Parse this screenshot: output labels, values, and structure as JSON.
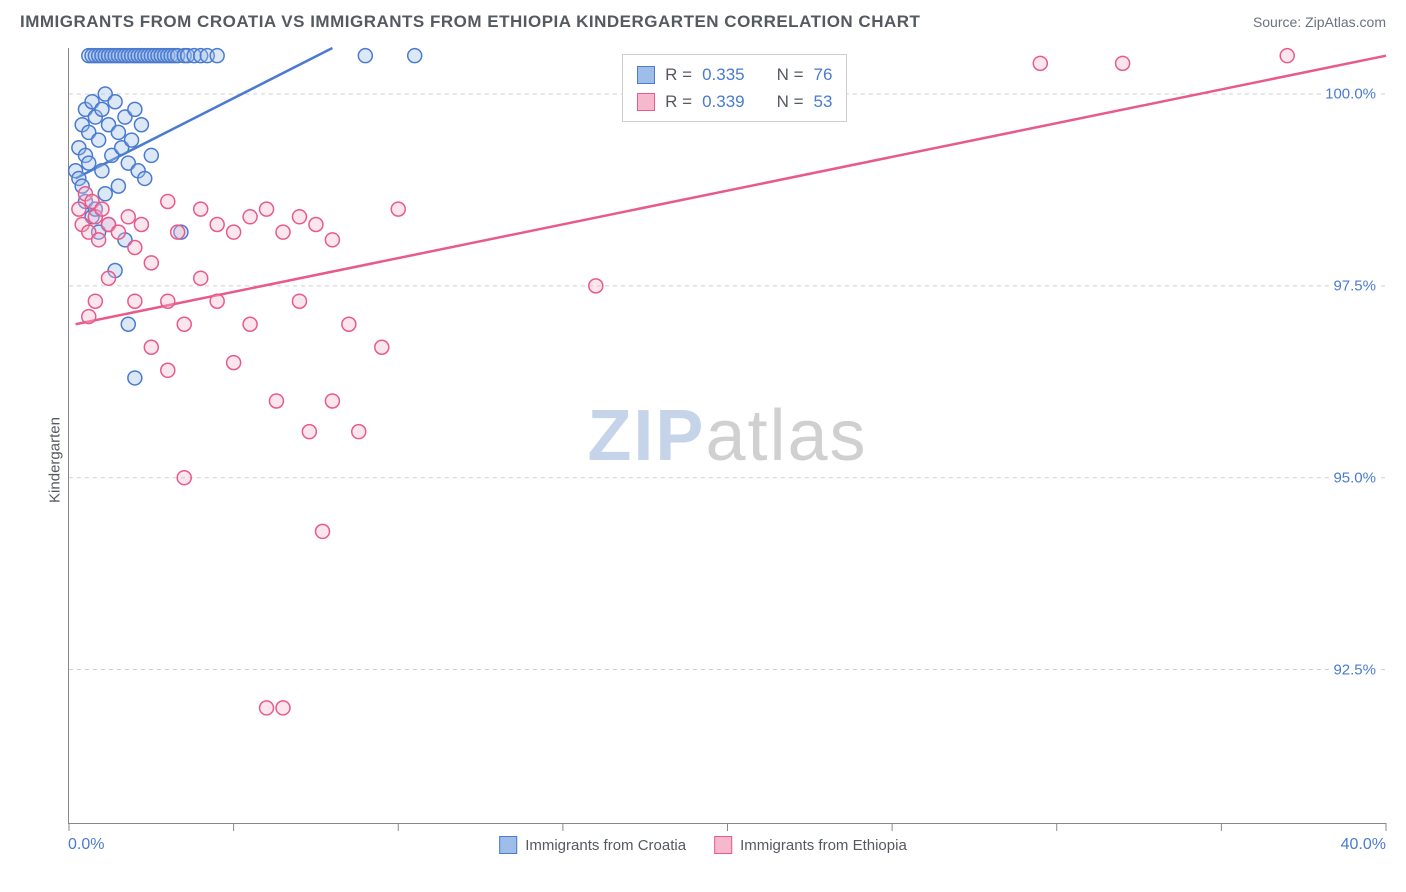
{
  "header": {
    "title": "IMMIGRANTS FROM CROATIA VS IMMIGRANTS FROM ETHIOPIA KINDERGARTEN CORRELATION CHART",
    "source": "Source: ZipAtlas.com"
  },
  "ylabel": "Kindergarten",
  "watermark": {
    "part1": "ZIP",
    "part2": "atlas"
  },
  "chart": {
    "type": "scatter",
    "xlim": [
      0,
      40
    ],
    "ylim": [
      90.5,
      100.6
    ],
    "xtick_positions": [
      0,
      5,
      10,
      15,
      20,
      25,
      30,
      35,
      40
    ],
    "x_min_label": "0.0%",
    "x_max_label": "40.0%",
    "yticks": [
      {
        "v": 100.0,
        "label": "100.0%"
      },
      {
        "v": 97.5,
        "label": "97.5%"
      },
      {
        "v": 95.0,
        "label": "95.0%"
      },
      {
        "v": 92.5,
        "label": "92.5%"
      }
    ],
    "background_color": "#ffffff",
    "grid_color": "#d0d0d0",
    "axis_color": "#888888",
    "tick_label_color": "#4a7bd0",
    "marker_radius": 7,
    "series": [
      {
        "id": "croatia",
        "label": "Immigrants from Croatia",
        "color_stroke": "#4a7bd0",
        "color_fill": "#9ebde8",
        "R": "0.335",
        "N": "76",
        "trend": {
          "x1": 0.2,
          "y1": 98.9,
          "x2": 8.0,
          "y2": 100.6
        },
        "points": [
          [
            0.2,
            99.0
          ],
          [
            0.3,
            99.3
          ],
          [
            0.3,
            98.9
          ],
          [
            0.4,
            99.6
          ],
          [
            0.4,
            98.8
          ],
          [
            0.5,
            99.8
          ],
          [
            0.5,
            99.2
          ],
          [
            0.5,
            98.6
          ],
          [
            0.6,
            100.5
          ],
          [
            0.6,
            99.5
          ],
          [
            0.6,
            99.1
          ],
          [
            0.7,
            100.5
          ],
          [
            0.7,
            99.9
          ],
          [
            0.7,
            98.4
          ],
          [
            0.8,
            100.5
          ],
          [
            0.8,
            99.7
          ],
          [
            0.8,
            98.5
          ],
          [
            0.9,
            100.5
          ],
          [
            0.9,
            99.4
          ],
          [
            0.9,
            98.2
          ],
          [
            1.0,
            100.5
          ],
          [
            1.0,
            99.8
          ],
          [
            1.0,
            99.0
          ],
          [
            1.1,
            100.5
          ],
          [
            1.1,
            100.0
          ],
          [
            1.1,
            98.7
          ],
          [
            1.2,
            100.5
          ],
          [
            1.2,
            99.6
          ],
          [
            1.2,
            98.3
          ],
          [
            1.3,
            100.5
          ],
          [
            1.3,
            99.2
          ],
          [
            1.4,
            100.5
          ],
          [
            1.4,
            99.9
          ],
          [
            1.4,
            97.7
          ],
          [
            1.5,
            100.5
          ],
          [
            1.5,
            99.5
          ],
          [
            1.5,
            98.8
          ],
          [
            1.6,
            100.5
          ],
          [
            1.6,
            99.3
          ],
          [
            1.7,
            100.5
          ],
          [
            1.7,
            99.7
          ],
          [
            1.7,
            98.1
          ],
          [
            1.8,
            100.5
          ],
          [
            1.8,
            99.1
          ],
          [
            1.8,
            97.0
          ],
          [
            1.9,
            100.5
          ],
          [
            1.9,
            99.4
          ],
          [
            2.0,
            100.5
          ],
          [
            2.0,
            99.8
          ],
          [
            2.0,
            96.3
          ],
          [
            2.1,
            100.5
          ],
          [
            2.1,
            99.0
          ],
          [
            2.2,
            100.5
          ],
          [
            2.2,
            99.6
          ],
          [
            2.3,
            100.5
          ],
          [
            2.3,
            98.9
          ],
          [
            2.4,
            100.5
          ],
          [
            2.5,
            100.5
          ],
          [
            2.5,
            99.2
          ],
          [
            2.6,
            100.5
          ],
          [
            2.7,
            100.5
          ],
          [
            2.8,
            100.5
          ],
          [
            2.9,
            100.5
          ],
          [
            3.0,
            100.5
          ],
          [
            3.1,
            100.5
          ],
          [
            3.2,
            100.5
          ],
          [
            3.3,
            100.5
          ],
          [
            3.4,
            98.2
          ],
          [
            3.5,
            100.5
          ],
          [
            3.6,
            100.5
          ],
          [
            3.8,
            100.5
          ],
          [
            4.0,
            100.5
          ],
          [
            4.2,
            100.5
          ],
          [
            4.5,
            100.5
          ],
          [
            9.0,
            100.5
          ],
          [
            10.5,
            100.5
          ]
        ]
      },
      {
        "id": "ethiopia",
        "label": "Immigrants from Ethiopia",
        "color_stroke": "#e85a8a",
        "color_fill": "#f5b8cd",
        "R": "0.339",
        "N": "53",
        "trend": {
          "x1": 0.2,
          "y1": 97.0,
          "x2": 40.0,
          "y2": 100.5
        },
        "points": [
          [
            0.3,
            98.5
          ],
          [
            0.4,
            98.3
          ],
          [
            0.5,
            98.7
          ],
          [
            0.6,
            98.2
          ],
          [
            0.6,
            97.1
          ],
          [
            0.7,
            98.6
          ],
          [
            0.8,
            98.4
          ],
          [
            0.8,
            97.3
          ],
          [
            0.9,
            98.1
          ],
          [
            1.0,
            98.5
          ],
          [
            1.2,
            98.3
          ],
          [
            1.2,
            97.6
          ],
          [
            1.5,
            98.2
          ],
          [
            1.8,
            98.4
          ],
          [
            2.0,
            98.0
          ],
          [
            2.0,
            97.3
          ],
          [
            2.2,
            98.3
          ],
          [
            2.5,
            96.7
          ],
          [
            2.5,
            97.8
          ],
          [
            3.0,
            98.6
          ],
          [
            3.0,
            97.3
          ],
          [
            3.0,
            96.4
          ],
          [
            3.3,
            98.2
          ],
          [
            3.5,
            97.0
          ],
          [
            3.5,
            95.0
          ],
          [
            4.0,
            98.5
          ],
          [
            4.0,
            97.6
          ],
          [
            4.5,
            98.3
          ],
          [
            4.5,
            97.3
          ],
          [
            5.0,
            98.2
          ],
          [
            5.0,
            96.5
          ],
          [
            5.5,
            98.4
          ],
          [
            5.5,
            97.0
          ],
          [
            6.0,
            98.5
          ],
          [
            6.0,
            92.0
          ],
          [
            6.3,
            96.0
          ],
          [
            6.5,
            98.2
          ],
          [
            6.5,
            92.0
          ],
          [
            7.0,
            98.4
          ],
          [
            7.0,
            97.3
          ],
          [
            7.3,
            95.6
          ],
          [
            7.5,
            98.3
          ],
          [
            7.7,
            94.3
          ],
          [
            8.0,
            98.1
          ],
          [
            8.0,
            96.0
          ],
          [
            8.5,
            97.0
          ],
          [
            8.8,
            95.6
          ],
          [
            9.5,
            96.7
          ],
          [
            10.0,
            98.5
          ],
          [
            16.0,
            97.5
          ],
          [
            29.5,
            100.4
          ],
          [
            32.0,
            100.4
          ],
          [
            37.0,
            100.5
          ]
        ]
      }
    ]
  },
  "bottom_legend_label_prefix": "",
  "stats_box": {
    "R_label": "R =",
    "N_label": "N ="
  }
}
